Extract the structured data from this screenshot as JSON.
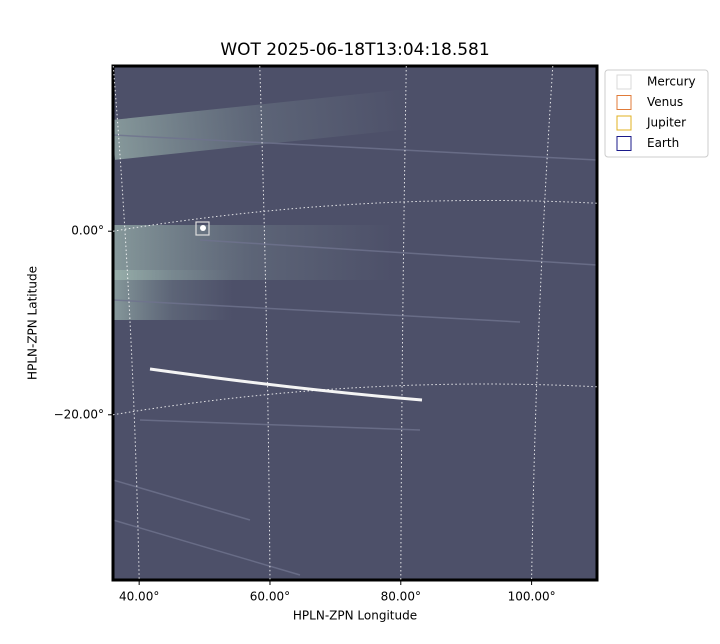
{
  "chart_data": {
    "type": "image",
    "title": "WOT 2025-06-18T13:04:18.581",
    "x_label": "HPLN-ZPN Longitude",
    "y_label": "HPLN-ZPN Latitude",
    "xlim": [
      36,
      110
    ],
    "ylim": [
      -38,
      18
    ],
    "xticks": [
      {
        "value": 40,
        "label": "40.00°"
      },
      {
        "value": 60,
        "label": "60.00°"
      },
      {
        "value": 80,
        "label": "80.00°"
      },
      {
        "value": 100,
        "label": "100.00°"
      }
    ],
    "yticks": [
      {
        "value": 0,
        "label": "0.00°"
      },
      {
        "value": -20,
        "label": "−20.00°"
      }
    ],
    "grid": true,
    "legend_position": "outside-upper-right",
    "series": [
      {
        "name": "Mercury",
        "color": "#d9d9d9"
      },
      {
        "name": "Venus",
        "color": "#e07b39"
      },
      {
        "name": "Jupiter",
        "color": "#e0b020"
      },
      {
        "name": "Earth",
        "color": "#1a1a8a"
      }
    ]
  }
}
